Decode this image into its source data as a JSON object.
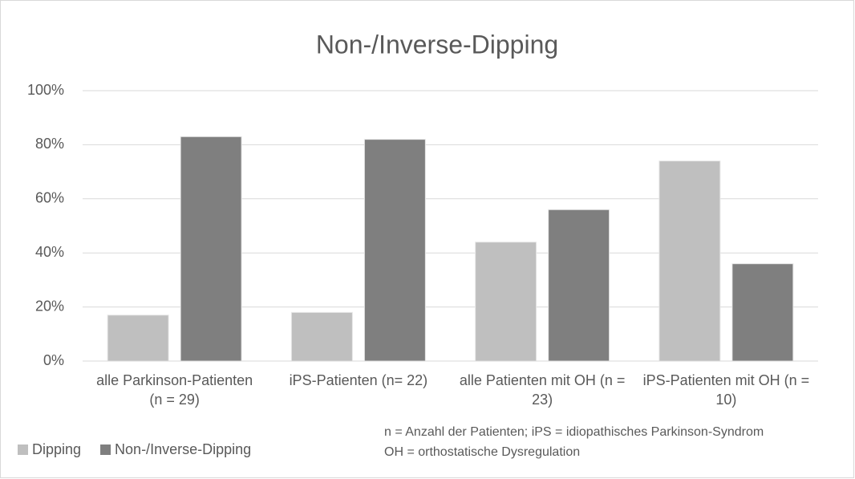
{
  "chart_data": {
    "type": "bar",
    "title": "Non-/Inverse-Dipping",
    "categories": [
      "alle Parkinson-Patienten (n = 29)",
      "iPS-Patienten (n= 22)",
      "alle Patienten mit OH (n = 23)",
      "iPS-Patienten mit OH (n = 10)"
    ],
    "series": [
      {
        "name": "Dipping",
        "color": "#bfbfbf",
        "values": [
          17,
          18,
          44,
          74
        ]
      },
      {
        "name": "Non-/Inverse-Dipping",
        "color": "#7f7f7f",
        "values": [
          83,
          82,
          56,
          36
        ]
      }
    ],
    "ylim": [
      0,
      100
    ],
    "yticks": [
      {
        "value": 0,
        "label": "0%"
      },
      {
        "value": 20,
        "label": "20%"
      },
      {
        "value": 40,
        "label": "40%"
      },
      {
        "value": 60,
        "label": "60%"
      },
      {
        "value": 80,
        "label": "80%"
      },
      {
        "value": 100,
        "label": "100%"
      }
    ],
    "grid": true,
    "legend": "bottom-left",
    "annotations": [
      "n = Anzahl der Patienten; iPS = idiopathisches Parkinson-Syndrom",
      "OH = orthostatische Dysregulation"
    ]
  }
}
